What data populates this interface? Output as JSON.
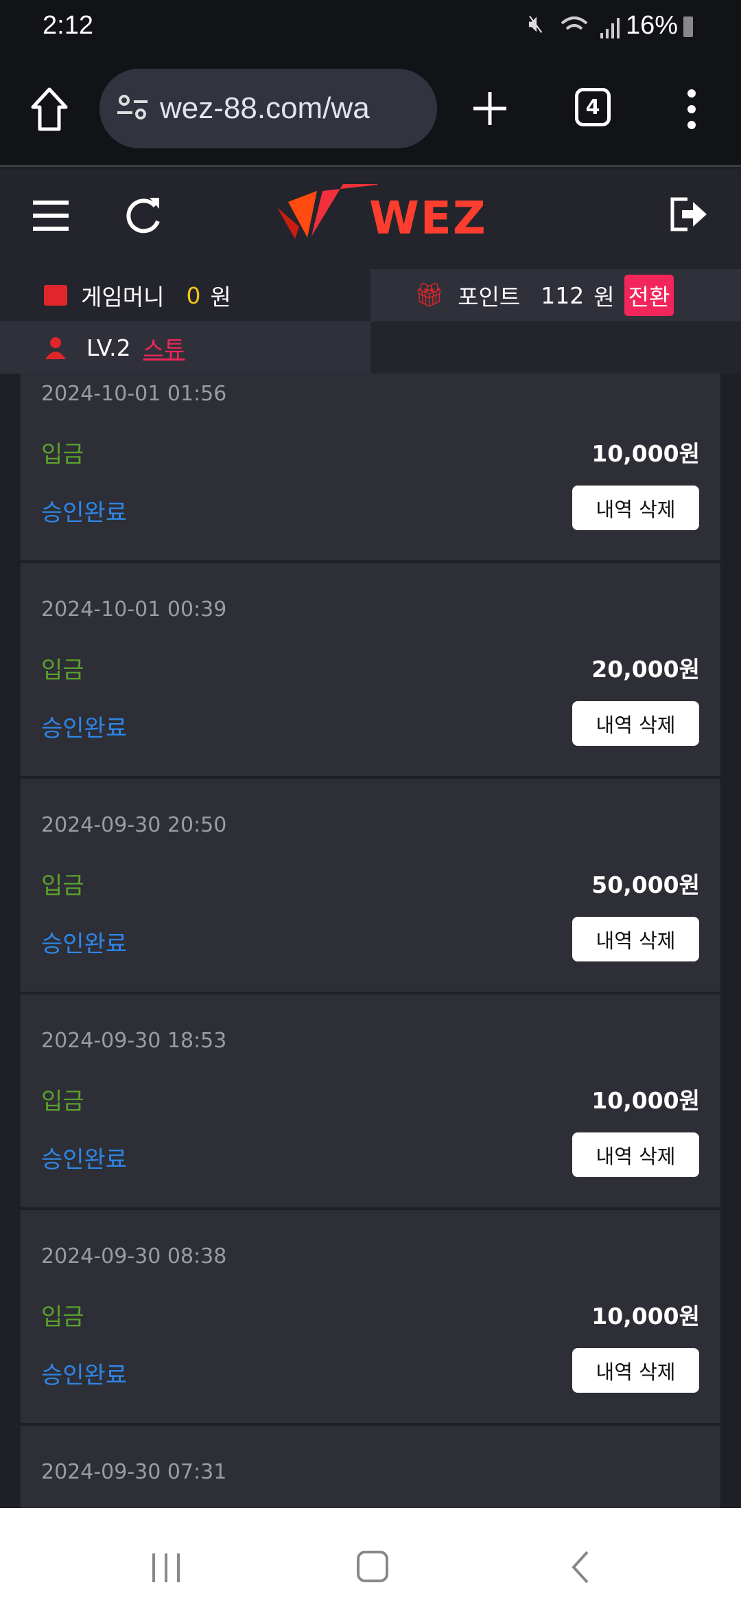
{
  "status_bar": {
    "time": "2:12",
    "battery": "16%"
  },
  "browser": {
    "url": "wez-88.com/wa",
    "tab_count": "4"
  },
  "header": {
    "logo": "WEZ"
  },
  "info": {
    "game_money_label": "게임머니",
    "game_money_value": "0",
    "game_money_unit": "원",
    "point_label": "포인트",
    "point_value": "112",
    "point_unit": "원",
    "convert_button": "전환",
    "level": "LV.2",
    "nickname": "스튜"
  },
  "transactions": [
    {
      "date": "2024-10-01 01:56",
      "type": "입금",
      "amount": "10,000원",
      "status": "승인완료",
      "delete_label": "내역 삭제"
    },
    {
      "date": "2024-10-01 00:39",
      "type": "입금",
      "amount": "20,000원",
      "status": "승인완료",
      "delete_label": "내역 삭제"
    },
    {
      "date": "2024-09-30 20:50",
      "type": "입금",
      "amount": "50,000원",
      "status": "승인완료",
      "delete_label": "내역 삭제"
    },
    {
      "date": "2024-09-30 18:53",
      "type": "입금",
      "amount": "10,000원",
      "status": "승인완료",
      "delete_label": "내역 삭제"
    },
    {
      "date": "2024-09-30 08:38",
      "type": "입금",
      "amount": "10,000원",
      "status": "승인완료",
      "delete_label": "내역 삭제"
    },
    {
      "date": "2024-09-30 07:31"
    }
  ],
  "colors": {
    "accent": "#f2265a",
    "deposit": "#5aa02c",
    "approved": "#2f86e6",
    "money": "#f5c518"
  }
}
